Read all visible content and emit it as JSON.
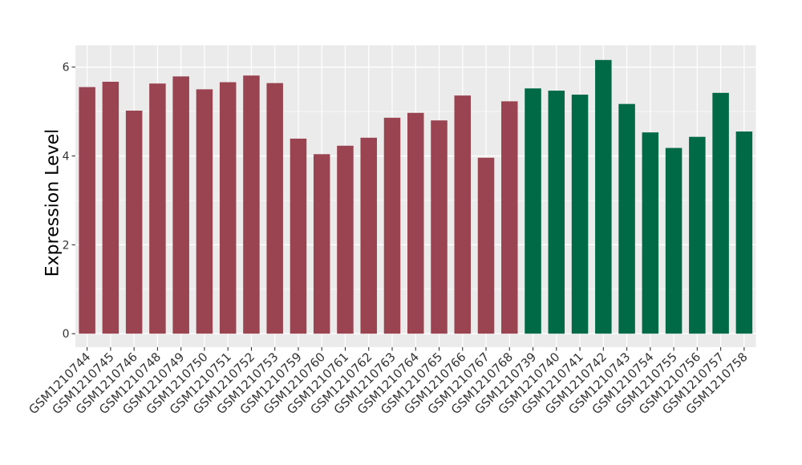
{
  "chart_data": {
    "type": "bar",
    "title": "",
    "xlabel": "",
    "ylabel": "Expression Level",
    "categories": [
      "GSM1210744",
      "GSM1210745",
      "GSM1210746",
      "GSM1210748",
      "GSM1210749",
      "GSM1210750",
      "GSM1210751",
      "GSM1210752",
      "GSM1210753",
      "GSM1210759",
      "GSM1210760",
      "GSM1210761",
      "GSM1210762",
      "GSM1210763",
      "GSM1210764",
      "GSM1210765",
      "GSM1210766",
      "GSM1210767",
      "GSM1210768",
      "GSM1210739",
      "GSM1210740",
      "GSM1210741",
      "GSM1210742",
      "GSM1210743",
      "GSM1210754",
      "GSM1210755",
      "GSM1210756",
      "GSM1210757",
      "GSM1210758"
    ],
    "values": [
      5.55,
      5.67,
      5.02,
      5.63,
      5.79,
      5.5,
      5.66,
      5.81,
      5.64,
      4.39,
      4.04,
      4.23,
      4.41,
      4.86,
      4.97,
      4.8,
      5.36,
      3.96,
      5.23,
      5.52,
      5.47,
      5.38,
      6.16,
      5.17,
      4.53,
      4.18,
      4.43,
      5.42,
      4.55
    ],
    "bar_group": [
      0,
      0,
      0,
      0,
      0,
      0,
      0,
      0,
      0,
      0,
      0,
      0,
      0,
      0,
      0,
      0,
      0,
      0,
      0,
      1,
      1,
      1,
      1,
      1,
      1,
      1,
      1,
      1,
      1
    ],
    "group_colors": [
      "#9B4451",
      "#006946"
    ],
    "yticks": [
      0,
      2,
      4,
      6
    ],
    "ytick_labels": [
      "0",
      "2",
      "4",
      "6"
    ],
    "minor_yticks": [
      1,
      3,
      5
    ],
    "ylim": [
      -0.31,
      6.49
    ],
    "grid": true,
    "legend_position": "none",
    "panel_background": "#EBEBEB",
    "gridline_color": "#FFFFFF",
    "tick_color": "#333333",
    "axis_text_color": "#333333",
    "bar_orientation": "vertical",
    "x_label_angle": 45
  }
}
